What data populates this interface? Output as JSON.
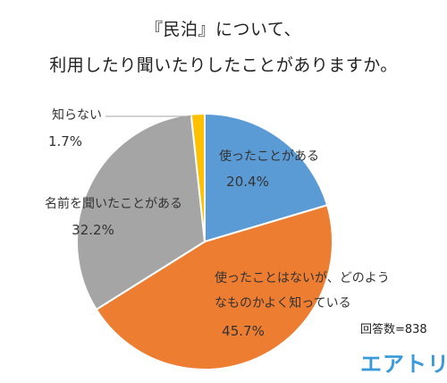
{
  "title": {
    "line1": "『民泊』について、",
    "line2": "利用したり聞いたりしたことがありますか。"
  },
  "footer": {
    "respondents": "回答数=838",
    "brand": "エアトリ"
  },
  "chart_data": {
    "type": "pie",
    "start": "12 o'clock, clockwise",
    "slices": [
      {
        "label_lines": [
          "使ったことがある"
        ],
        "value": 20.4,
        "value_text": "20.4%",
        "color": "#5b9bd5"
      },
      {
        "label_lines": [
          "使ったことはないが、どのよう",
          "なものかよく知っている"
        ],
        "value": 45.7,
        "value_text": "45.7%",
        "color": "#ed7d31"
      },
      {
        "label_lines": [
          "名前を聞いたことがある"
        ],
        "value": 32.2,
        "value_text": "32.2%",
        "color": "#a5a5a5"
      },
      {
        "label_lines": [
          "知らない"
        ],
        "value": 1.7,
        "value_text": "1.7%",
        "color": "#ffc000"
      }
    ]
  }
}
